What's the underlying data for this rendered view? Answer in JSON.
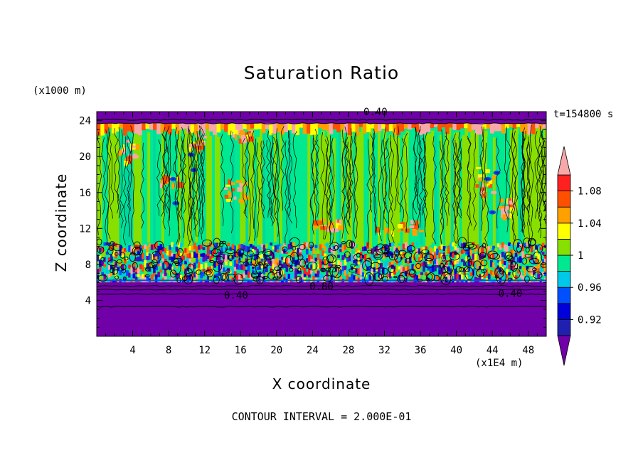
{
  "chart_data": {
    "type": "heatmap",
    "title": "Saturation Ratio",
    "xlabel": "X coordinate",
    "ylabel": "Z coordinate",
    "x_unit": "(x1E4 m)",
    "y_unit": "(x1000 m)",
    "time_label": "t=154800 s",
    "footer": "CONTOUR INTERVAL = 2.000E-01",
    "xlim": [
      0,
      50
    ],
    "ylim": [
      0,
      25
    ],
    "x_ticks": [
      4,
      8,
      12,
      16,
      20,
      24,
      28,
      32,
      36,
      40,
      44,
      48
    ],
    "y_ticks": [
      4,
      8,
      12,
      16,
      20,
      24
    ],
    "colorbar": {
      "levels": [
        0.9,
        0.92,
        0.94,
        0.96,
        0.98,
        1.0,
        1.02,
        1.04,
        1.06,
        1.08,
        1.1
      ],
      "tick_labels": [
        "0.92",
        "0.96",
        "1",
        "1.04",
        "1.08"
      ],
      "colors": [
        "#7000a8",
        "#2020b0",
        "#0000d8",
        "#0050ff",
        "#00c8e8",
        "#00e890",
        "#88e000",
        "#ffff00",
        "#ffa000",
        "#ff5000",
        "#ff2020",
        "#f8a8a8"
      ]
    },
    "contour_labels": [
      {
        "x": 31,
        "y": 24.6,
        "text": "0.40"
      },
      {
        "x": 15.5,
        "y": 4.2,
        "text": "0.40"
      },
      {
        "x": 25,
        "y": 5.2,
        "text": "0.80"
      },
      {
        "x": 46,
        "y": 4.4,
        "text": "0.40"
      }
    ],
    "layers": [
      {
        "z_range": [
          0,
          5.5
        ],
        "description_value": 0.4
      },
      {
        "z_range": [
          5.5,
          10.5
        ],
        "mixed": true
      },
      {
        "z_range": [
          10.5,
          23.5
        ],
        "dominant": 1.0
      },
      {
        "z_range": [
          23.5,
          25
        ],
        "description_value": 0.4
      }
    ]
  }
}
